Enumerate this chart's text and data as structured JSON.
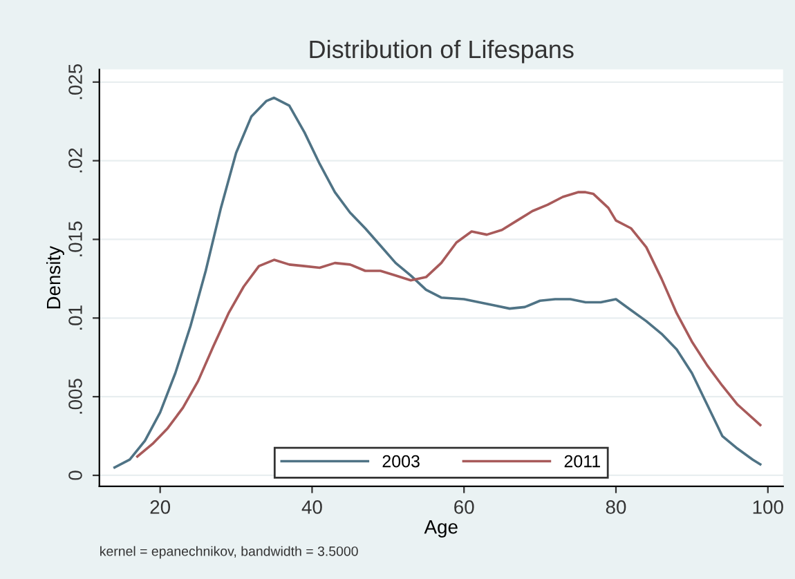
{
  "chart_data": {
    "type": "line",
    "title": "Distribution of Lifespans",
    "xlabel": "Age",
    "ylabel": "Density",
    "annotations": [
      "kernel = epanechnikov, bandwidth = 3.5000"
    ],
    "xlim": [
      12,
      102
    ],
    "xticks": [
      20,
      40,
      60,
      80,
      100
    ],
    "ylim": [
      -0.0007,
      0.0258
    ],
    "yticks": [
      {
        "value": 0,
        "label": "0"
      },
      {
        "value": 0.005,
        "label": ".005"
      },
      {
        "value": 0.01,
        "label": ".01"
      },
      {
        "value": 0.015,
        "label": ".015"
      },
      {
        "value": 0.02,
        "label": ".02"
      },
      {
        "value": 0.025,
        "label": ".025"
      }
    ],
    "grid": "y",
    "legend": "bottom",
    "line_style": "solid",
    "series": [
      {
        "name": "2003",
        "color": "#4f7385",
        "x": [
          14,
          16,
          18,
          20,
          22,
          24,
          26,
          28,
          30,
          32,
          34,
          35,
          37,
          39,
          41,
          43,
          45,
          47,
          49,
          51,
          53,
          55,
          57,
          60,
          62,
          64,
          66,
          68,
          70,
          72,
          74,
          76,
          78,
          80,
          82,
          84,
          86,
          88,
          90,
          92,
          94,
          96,
          98,
          99
        ],
        "values": [
          0.0005,
          0.001,
          0.0022,
          0.004,
          0.0065,
          0.0095,
          0.013,
          0.017,
          0.0205,
          0.0228,
          0.0238,
          0.024,
          0.0235,
          0.0218,
          0.0198,
          0.018,
          0.0167,
          0.0157,
          0.0146,
          0.0135,
          0.0127,
          0.0118,
          0.0113,
          0.0112,
          0.011,
          0.0108,
          0.0106,
          0.0107,
          0.0111,
          0.0112,
          0.0112,
          0.011,
          0.011,
          0.0112,
          0.0105,
          0.0098,
          0.009,
          0.008,
          0.0065,
          0.0045,
          0.0025,
          0.0017,
          0.001,
          0.0007
        ]
      },
      {
        "name": "2011",
        "color": "#a85a5a",
        "x": [
          17,
          19,
          21,
          23,
          25,
          27,
          29,
          31,
          33,
          35,
          37,
          39,
          41,
          43,
          45,
          47,
          49,
          51,
          53,
          55,
          57,
          59,
          61,
          63,
          65,
          67,
          69,
          71,
          73,
          75,
          76,
          77,
          79,
          80,
          82,
          84,
          86,
          88,
          90,
          92,
          94,
          96,
          99
        ],
        "values": [
          0.0012,
          0.002,
          0.003,
          0.0043,
          0.006,
          0.0082,
          0.0103,
          0.012,
          0.0133,
          0.0137,
          0.0134,
          0.0133,
          0.0132,
          0.0135,
          0.0134,
          0.013,
          0.013,
          0.0127,
          0.0124,
          0.0126,
          0.0135,
          0.0148,
          0.0155,
          0.0153,
          0.0156,
          0.0162,
          0.0168,
          0.0172,
          0.0177,
          0.018,
          0.018,
          0.0179,
          0.017,
          0.0162,
          0.0157,
          0.0145,
          0.0125,
          0.0103,
          0.0085,
          0.007,
          0.0057,
          0.0045,
          0.0032
        ]
      }
    ]
  }
}
